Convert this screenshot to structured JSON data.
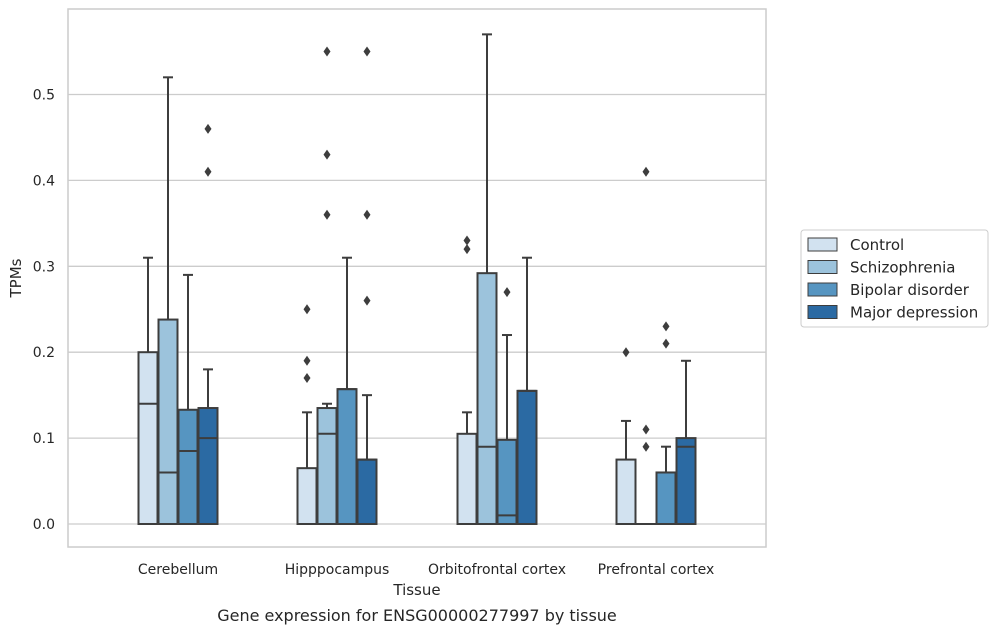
{
  "caption": "Gene expression for ENSG00000277997 by tissue",
  "chart_data": {
    "type": "box",
    "xlabel": "Tissue",
    "ylabel": "TPMs",
    "ylim": [
      -0.028,
      0.59
    ],
    "yticks": [
      "0.0",
      "0.1",
      "0.2",
      "0.3",
      "0.4",
      "0.5"
    ],
    "categories": [
      "Cerebellum",
      "Hipppocampus",
      "Orbitofrontal cortex",
      "Prefrontal cortex"
    ],
    "grid": "horizontal",
    "legend_position": "right",
    "series": [
      {
        "name": "Control",
        "color": "#d2e2f0",
        "boxes": [
          {
            "q1": 0.0,
            "median": 0.14,
            "q3": 0.2,
            "whisker_low": 0.0,
            "whisker_high": 0.31,
            "outliers": []
          },
          {
            "q1": 0.0,
            "median": 0.0,
            "q3": 0.065,
            "whisker_low": 0.0,
            "whisker_high": 0.13,
            "outliers": [
              0.17,
              0.19,
              0.25
            ]
          },
          {
            "q1": 0.0,
            "median": 0.0,
            "q3": 0.105,
            "whisker_low": 0.0,
            "whisker_high": 0.13,
            "outliers": [
              0.32,
              0.33
            ]
          },
          {
            "q1": 0.0,
            "median": 0.0,
            "q3": 0.075,
            "whisker_low": 0.0,
            "whisker_high": 0.12,
            "outliers": [
              0.2
            ]
          }
        ]
      },
      {
        "name": "Schizophrenia",
        "color": "#9cc3dc",
        "boxes": [
          {
            "q1": 0.0,
            "median": 0.06,
            "q3": 0.238,
            "whisker_low": 0.0,
            "whisker_high": 0.52,
            "outliers": []
          },
          {
            "q1": 0.0,
            "median": 0.105,
            "q3": 0.135,
            "whisker_low": 0.0,
            "whisker_high": 0.14,
            "outliers": [
              0.36,
              0.43,
              0.55
            ]
          },
          {
            "q1": 0.0,
            "median": 0.09,
            "q3": 0.292,
            "whisker_low": 0.0,
            "whisker_high": 0.57,
            "outliers": []
          },
          {
            "q1": 0.0,
            "median": 0.0,
            "q3": 0.0,
            "whisker_low": 0.0,
            "whisker_high": 0.0,
            "outliers": [
              0.09,
              0.11,
              0.41
            ]
          }
        ]
      },
      {
        "name": "Bipolar disorder",
        "color": "#5695c1",
        "boxes": [
          {
            "q1": 0.0,
            "median": 0.085,
            "q3": 0.133,
            "whisker_low": 0.0,
            "whisker_high": 0.29,
            "outliers": []
          },
          {
            "q1": 0.0,
            "median": 0.157,
            "q3": 0.157,
            "whisker_low": 0.0,
            "whisker_high": 0.31,
            "outliers": []
          },
          {
            "q1": 0.0,
            "median": 0.01,
            "q3": 0.098,
            "whisker_low": 0.0,
            "whisker_high": 0.22,
            "outliers": [
              0.27
            ]
          },
          {
            "q1": 0.0,
            "median": 0.06,
            "q3": 0.06,
            "whisker_low": 0.0,
            "whisker_high": 0.09,
            "outliers": [
              0.21,
              0.23
            ]
          }
        ]
      },
      {
        "name": "Major depression",
        "color": "#2b6aa3",
        "boxes": [
          {
            "q1": 0.0,
            "median": 0.1,
            "q3": 0.135,
            "whisker_low": 0.0,
            "whisker_high": 0.18,
            "outliers": [
              0.41,
              0.46
            ]
          },
          {
            "q1": 0.0,
            "median": 0.075,
            "q3": 0.075,
            "whisker_low": 0.0,
            "whisker_high": 0.15,
            "outliers": [
              0.26,
              0.36,
              0.55
            ]
          },
          {
            "q1": 0.0,
            "median": 0.155,
            "q3": 0.155,
            "whisker_low": 0.0,
            "whisker_high": 0.31,
            "outliers": []
          },
          {
            "q1": 0.0,
            "median": 0.09,
            "q3": 0.1,
            "whisker_low": 0.0,
            "whisker_high": 0.19,
            "outliers": []
          }
        ]
      }
    ]
  }
}
